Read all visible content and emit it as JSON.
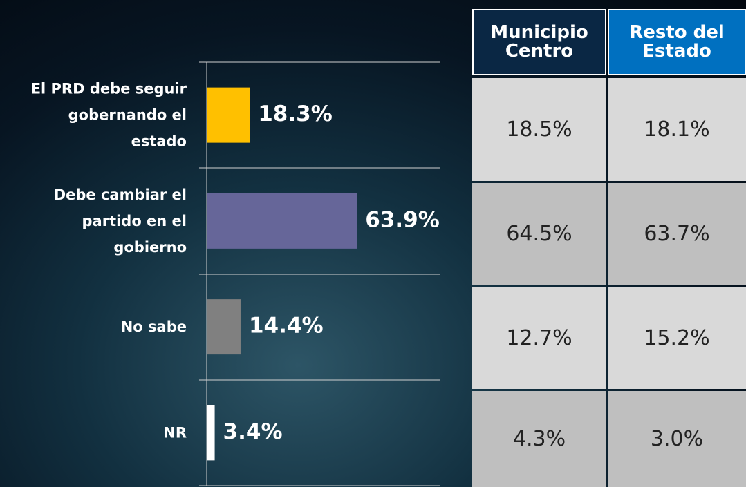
{
  "chart_data": {
    "type": "hbar",
    "categories": [
      "El PRD debe seguir gobernando el estado",
      "Debe cambiar el partido en el gobierno",
      "No sabe",
      "NR"
    ],
    "values": [
      18.3,
      63.9,
      14.4,
      3.4
    ],
    "value_labels": [
      "18.3%",
      "63.9%",
      "14.4%",
      "3.4%"
    ],
    "colors": [
      "#ffc000",
      "#666699",
      "#808080",
      "#ffffff"
    ]
  },
  "table": {
    "headers": [
      "Municipio Centro",
      "Resto del Estado"
    ],
    "rows": [
      [
        "18.5%",
        "18.1%"
      ],
      [
        "64.5%",
        "63.7%"
      ],
      [
        "12.7%",
        "15.2%"
      ],
      [
        "4.3%",
        "3.0%"
      ]
    ]
  }
}
